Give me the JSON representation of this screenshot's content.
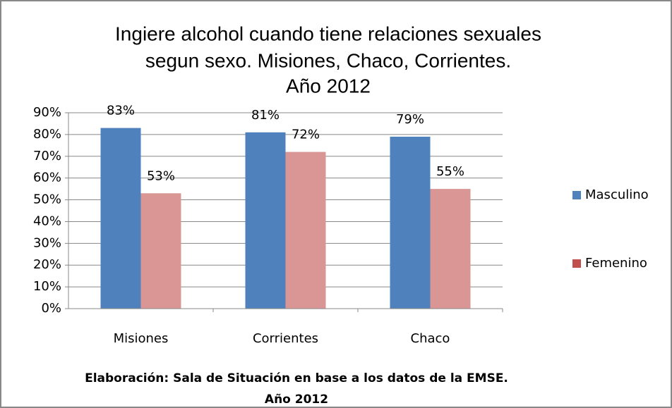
{
  "chart_data": {
    "type": "bar",
    "title": [
      "Ingiere alcohol cuando tiene relaciones sexuales",
      "segun sexo. Misiones, Chaco, Corrientes.",
      "Año 2012"
    ],
    "caption": [
      "Elaboración: Sala de Situación en base a los datos de la EMSE.",
      "Año 2012"
    ],
    "categories": [
      "Misiones",
      "Corrientes",
      "Chaco"
    ],
    "series": [
      {
        "name": "Masculino",
        "color": "#4f81bd",
        "legend_color": "#4f81bd",
        "values": [
          83,
          81,
          79
        ],
        "value_labels": [
          "83%",
          "81%",
          "79%"
        ]
      },
      {
        "name": "Femenino",
        "color": "#d99694",
        "legend_color": "#c0504d",
        "values": [
          53,
          72,
          55
        ],
        "value_labels": [
          "53%",
          "72%",
          "55%"
        ]
      }
    ],
    "ylim": [
      0,
      90
    ],
    "yticks": [
      {
        "value": 0,
        "label": "0%"
      },
      {
        "value": 10,
        "label": "10%"
      },
      {
        "value": 20,
        "label": "20%"
      },
      {
        "value": 30,
        "label": "30%"
      },
      {
        "value": 40,
        "label": "40%"
      },
      {
        "value": 50,
        "label": "50%"
      },
      {
        "value": 60,
        "label": "60%"
      },
      {
        "value": 70,
        "label": "70%"
      },
      {
        "value": 80,
        "label": "80%"
      },
      {
        "value": 90,
        "label": "90%"
      }
    ],
    "grid": true,
    "legend": "right"
  }
}
